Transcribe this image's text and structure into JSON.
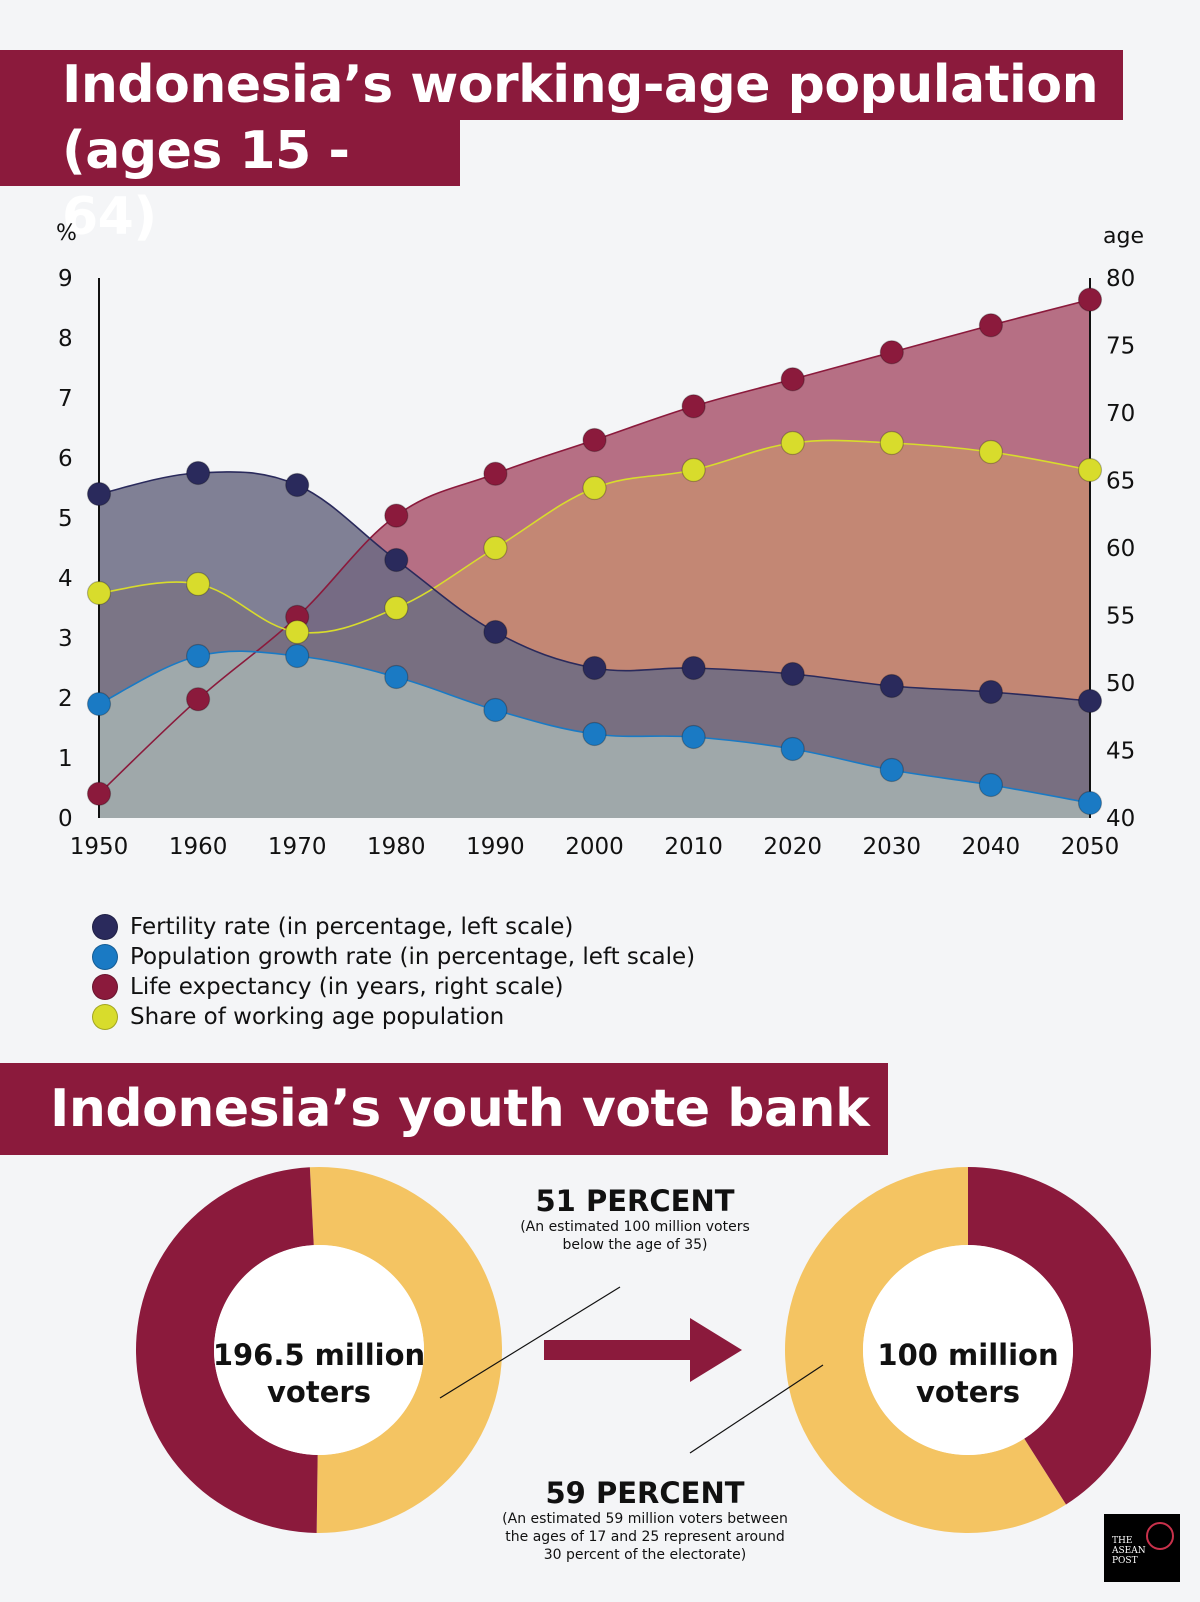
{
  "header": {
    "title_line1": "Indonesia’s working-age population",
    "title_line2": "(ages 15 - 64)"
  },
  "chart_data": [
    {
      "type": "area",
      "title": "Indonesia’s working-age population (ages 15 - 64)",
      "x": [
        1950,
        1960,
        1970,
        1980,
        1990,
        2000,
        2010,
        2020,
        2030,
        2040,
        2050
      ],
      "left_axis": {
        "unit": "%",
        "ylim": [
          0,
          9
        ],
        "ticks": [
          "0",
          "1",
          "2",
          "3",
          "4",
          "5",
          "6",
          "7",
          "8",
          "9"
        ]
      },
      "right_axis": {
        "unit": "age",
        "ylim": [
          40,
          80
        ],
        "ticks": [
          "40",
          "45",
          "50",
          "55",
          "60",
          "65",
          "70",
          "75",
          "80"
        ]
      },
      "x_ticks": [
        "1950",
        "1960",
        "1970",
        "1980",
        "1990",
        "2000",
        "2010",
        "2020",
        "2030",
        "2040",
        "2050"
      ],
      "series": [
        {
          "name": "Fertility rate (in percentage, left scale)",
          "axis": "left",
          "color": "#2a2a5c",
          "fill": "#6b6b84",
          "values": [
            5.4,
            5.75,
            5.55,
            4.3,
            3.1,
            2.5,
            2.5,
            2.4,
            2.2,
            2.1,
            1.95
          ]
        },
        {
          "name": "Population growth rate (in percentage, left scale)",
          "axis": "left",
          "color": "#1a7ac4",
          "fill": "#a9b6b4",
          "values": [
            1.9,
            2.7,
            2.7,
            2.35,
            1.8,
            1.4,
            1.35,
            1.15,
            0.8,
            0.55,
            0.25
          ]
        },
        {
          "name": "Life expectancy (in years, right scale)",
          "axis": "right",
          "color": "#8b1a3c",
          "fill": "#a64d67",
          "values": [
            41.8,
            48.8,
            54.9,
            62.4,
            65.5,
            68.0,
            70.5,
            72.5,
            74.5,
            76.5,
            78.4
          ]
        },
        {
          "name": "Share of working age population",
          "axis": "left",
          "color": "#d8dc2c",
          "fill": "#c8906e",
          "values": [
            3.75,
            3.9,
            3.1,
            3.5,
            4.5,
            5.5,
            5.8,
            6.25,
            6.25,
            6.1,
            5.8
          ]
        }
      ],
      "legend_position": "bottom-left"
    },
    {
      "type": "pie",
      "title": "Indonesia’s youth vote bank",
      "donuts": [
        {
          "center_label": "196.5 million voters",
          "slices": [
            {
              "label": "51 PERCENT",
              "value": 51,
              "color": "#f4c462"
            },
            {
              "value": 49,
              "color": "#8b1a3c"
            }
          ]
        },
        {
          "center_label": "100 million voters",
          "slices": [
            {
              "label": "59 PERCENT",
              "value": 59,
              "color": "#f4c462"
            },
            {
              "value": 41,
              "color": "#8b1a3c"
            }
          ]
        }
      ]
    }
  ],
  "section2": {
    "title": "Indonesia’s youth vote bank"
  },
  "callouts": {
    "top_head": "51 PERCENT",
    "top_note": "(An estimated 100 million voters below the age of 35)",
    "bottom_head": "59 PERCENT",
    "bottom_note": "(An estimated 59 million voters between the ages of 17 and 25 represent around 30 percent of the electorate)"
  },
  "donut_labels": {
    "left": "196.5 million voters",
    "right": "100 million voters"
  },
  "logo": {
    "line1": "THE",
    "line2": "ASEAN",
    "line3": "POST"
  },
  "colors": {
    "brand": "#8b1a3c",
    "yellow_slice": "#f4c462",
    "background": "#f4f5f7"
  }
}
